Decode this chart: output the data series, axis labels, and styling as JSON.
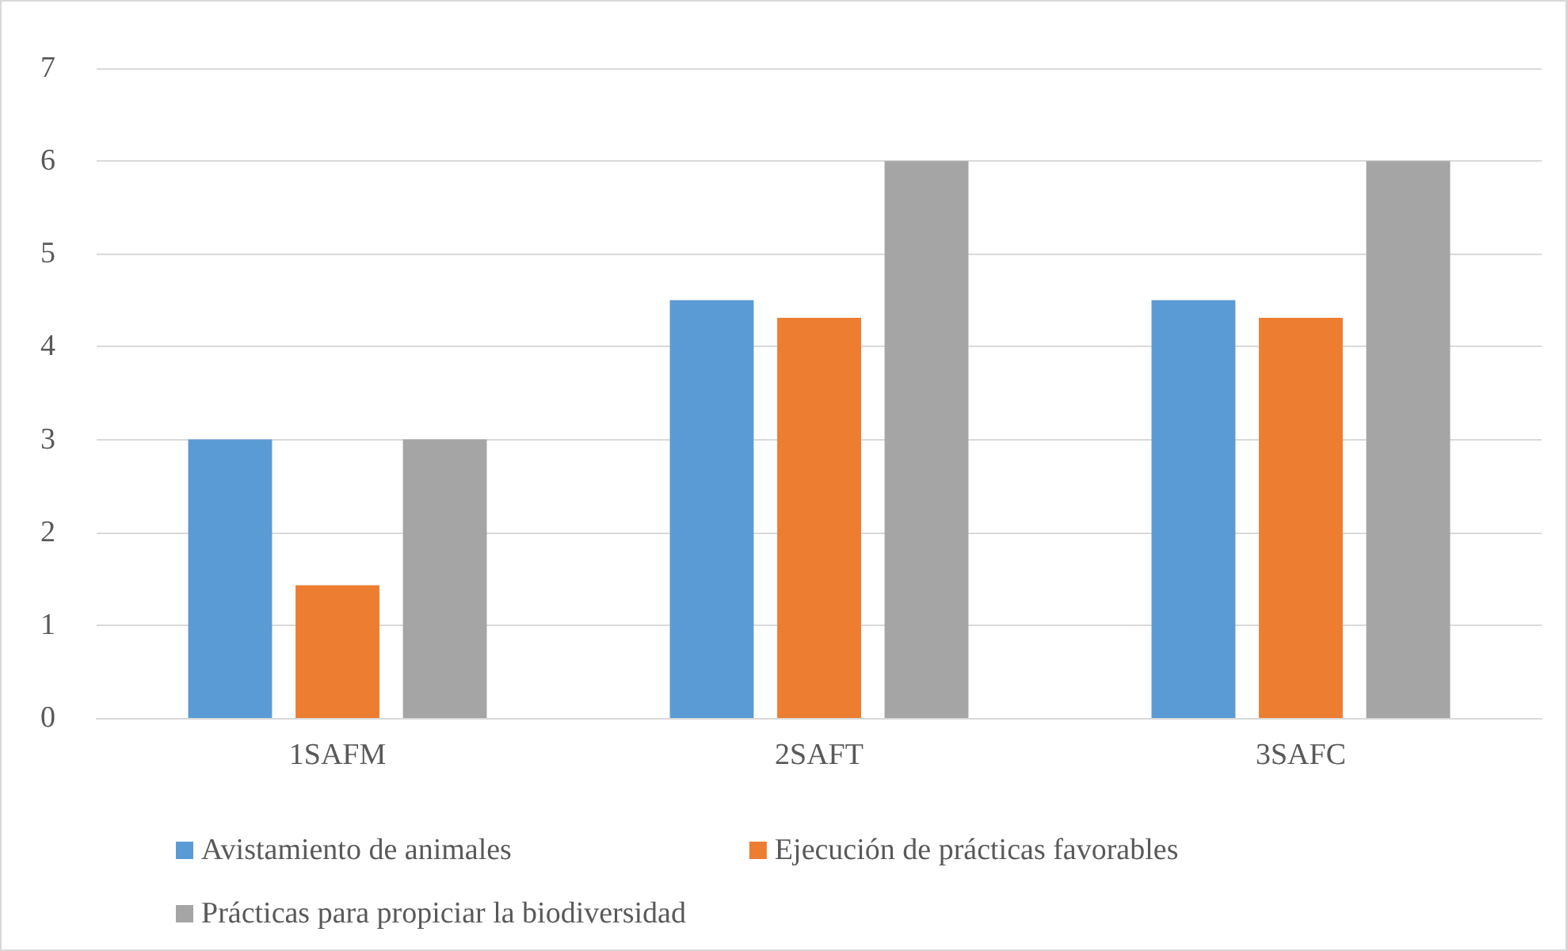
{
  "chart_data": {
    "type": "bar",
    "categories": [
      "1SAFM",
      "2SAFT",
      "3SAFC"
    ],
    "series": [
      {
        "name": "Avistamiento de animales",
        "color": "#5b9bd5",
        "values": [
          3,
          4.5,
          4.5
        ]
      },
      {
        "name": "Ejecución de prácticas favorables",
        "color": "#ed7d31",
        "values": [
          1.43,
          4.31,
          4.31
        ]
      },
      {
        "name": "Prácticas para propiciar la biodiversidad",
        "color": "#a5a5a5",
        "values": [
          3,
          6,
          6
        ]
      }
    ],
    "ylim": [
      0,
      7
    ],
    "yticks": [
      0,
      1,
      2,
      3,
      4,
      5,
      6,
      7
    ],
    "grid": "y",
    "legend": "bottom"
  }
}
